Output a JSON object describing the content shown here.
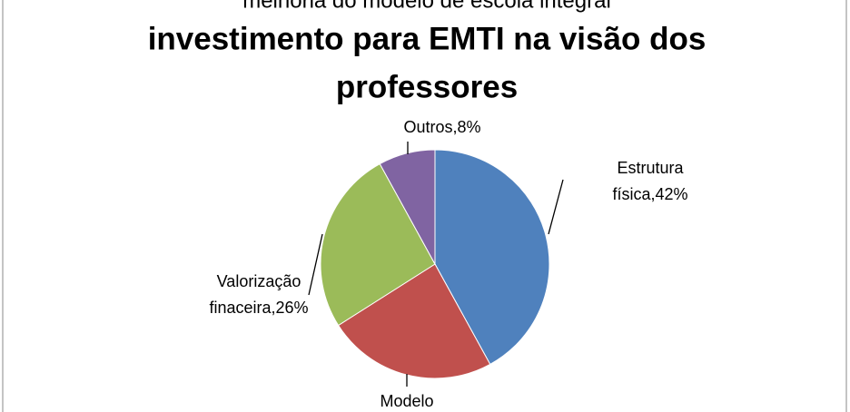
{
  "chart_data": {
    "type": "pie",
    "title_lines": [
      "melhoria do modelo de escola integral",
      "investimento para EMTI na visão dos",
      "professores"
    ],
    "values": [
      42,
      24,
      26,
      8
    ],
    "value_labels": [
      "Estrutura física,42%",
      "Modelo",
      "Valorização finaceira,26%",
      "Outros,8%"
    ],
    "colors": [
      "#4f81bd",
      "#c0504d",
      "#9bbb59",
      "#8064a2"
    ]
  }
}
